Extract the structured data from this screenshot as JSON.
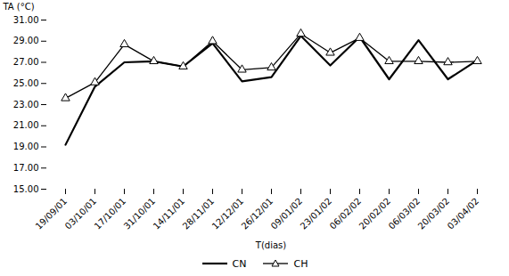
{
  "chart_data": {
    "type": "line",
    "xlabel": "T(dias)",
    "ylabel": "TA (°C)",
    "categories": [
      "19/09/01",
      "03/10/01",
      "17/10/01",
      "31/10/01",
      "14/11/01",
      "28/11/01",
      "12/12/01",
      "26/12/01",
      "09/01/02",
      "23/01/02",
      "06/02/02",
      "20/02/02",
      "06/03/02",
      "20/03/02",
      "03/04/02"
    ],
    "series": [
      {
        "name": "CN",
        "color": "#000000",
        "marker": "none",
        "line_style": "solid",
        "values": [
          19.2,
          24.7,
          27.0,
          27.1,
          26.6,
          28.8,
          25.2,
          25.6,
          29.5,
          26.7,
          29.4,
          25.4,
          29.1,
          25.4,
          27.2
        ]
      },
      {
        "name": "CH",
        "color": "#000000",
        "marker": "triangle",
        "line_style": "solid",
        "values": [
          23.6,
          25.1,
          28.7,
          27.1,
          26.6,
          29.0,
          26.3,
          26.5,
          29.7,
          27.9,
          29.3,
          27.1,
          27.1,
          27.0,
          27.1
        ]
      }
    ],
    "ylim": [
      15.0,
      31.0
    ],
    "yticks": [
      {
        "value": 15,
        "label": "15.00"
      },
      {
        "value": 17,
        "label": "17.00"
      },
      {
        "value": 19,
        "label": "19.00"
      },
      {
        "value": 21,
        "label": "21.00"
      },
      {
        "value": 23,
        "label": "23.00"
      },
      {
        "value": 25,
        "label": "25.00"
      },
      {
        "value": 27,
        "label": "27.00"
      },
      {
        "value": 29,
        "label": "29.00"
      },
      {
        "value": 31,
        "label": "31.00"
      }
    ],
    "grid": false,
    "legend": "bottom"
  }
}
